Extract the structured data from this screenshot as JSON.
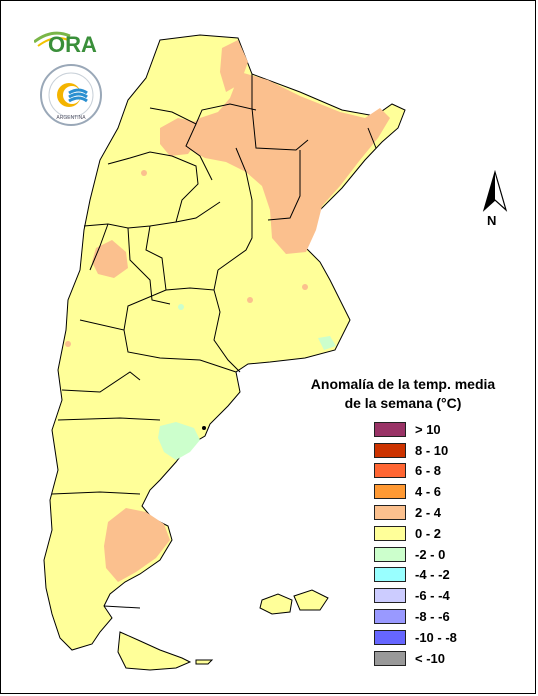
{
  "map": {
    "title_line1": "Anomalía de la temp. media",
    "title_line2": "de la semana (°C)",
    "north_label": "N",
    "legend": [
      {
        "label": "> 10",
        "color": "#993366"
      },
      {
        "label": "8 - 10",
        "color": "#cc3300"
      },
      {
        "label": "6 - 8",
        "color": "#ff6633"
      },
      {
        "label": "4 - 6",
        "color": "#ff9933"
      },
      {
        "label": "2 - 4",
        "color": "#fbc08e"
      },
      {
        "label": "0 - 2",
        "color": "#ffff99"
      },
      {
        "label": "-2 - 0",
        "color": "#ccffcc"
      },
      {
        "label": "-4 - -2",
        "color": "#99ffff"
      },
      {
        "label": "-6 - -4",
        "color": "#ccccff"
      },
      {
        "label": "-8 - -6",
        "color": "#9999ff"
      },
      {
        "label": "-10 - -8",
        "color": "#6666ff"
      },
      {
        "label": "< -10",
        "color": "#999999"
      }
    ]
  },
  "logos": {
    "ora_text": "ORA",
    "smn_text": "ARGENTINA"
  }
}
